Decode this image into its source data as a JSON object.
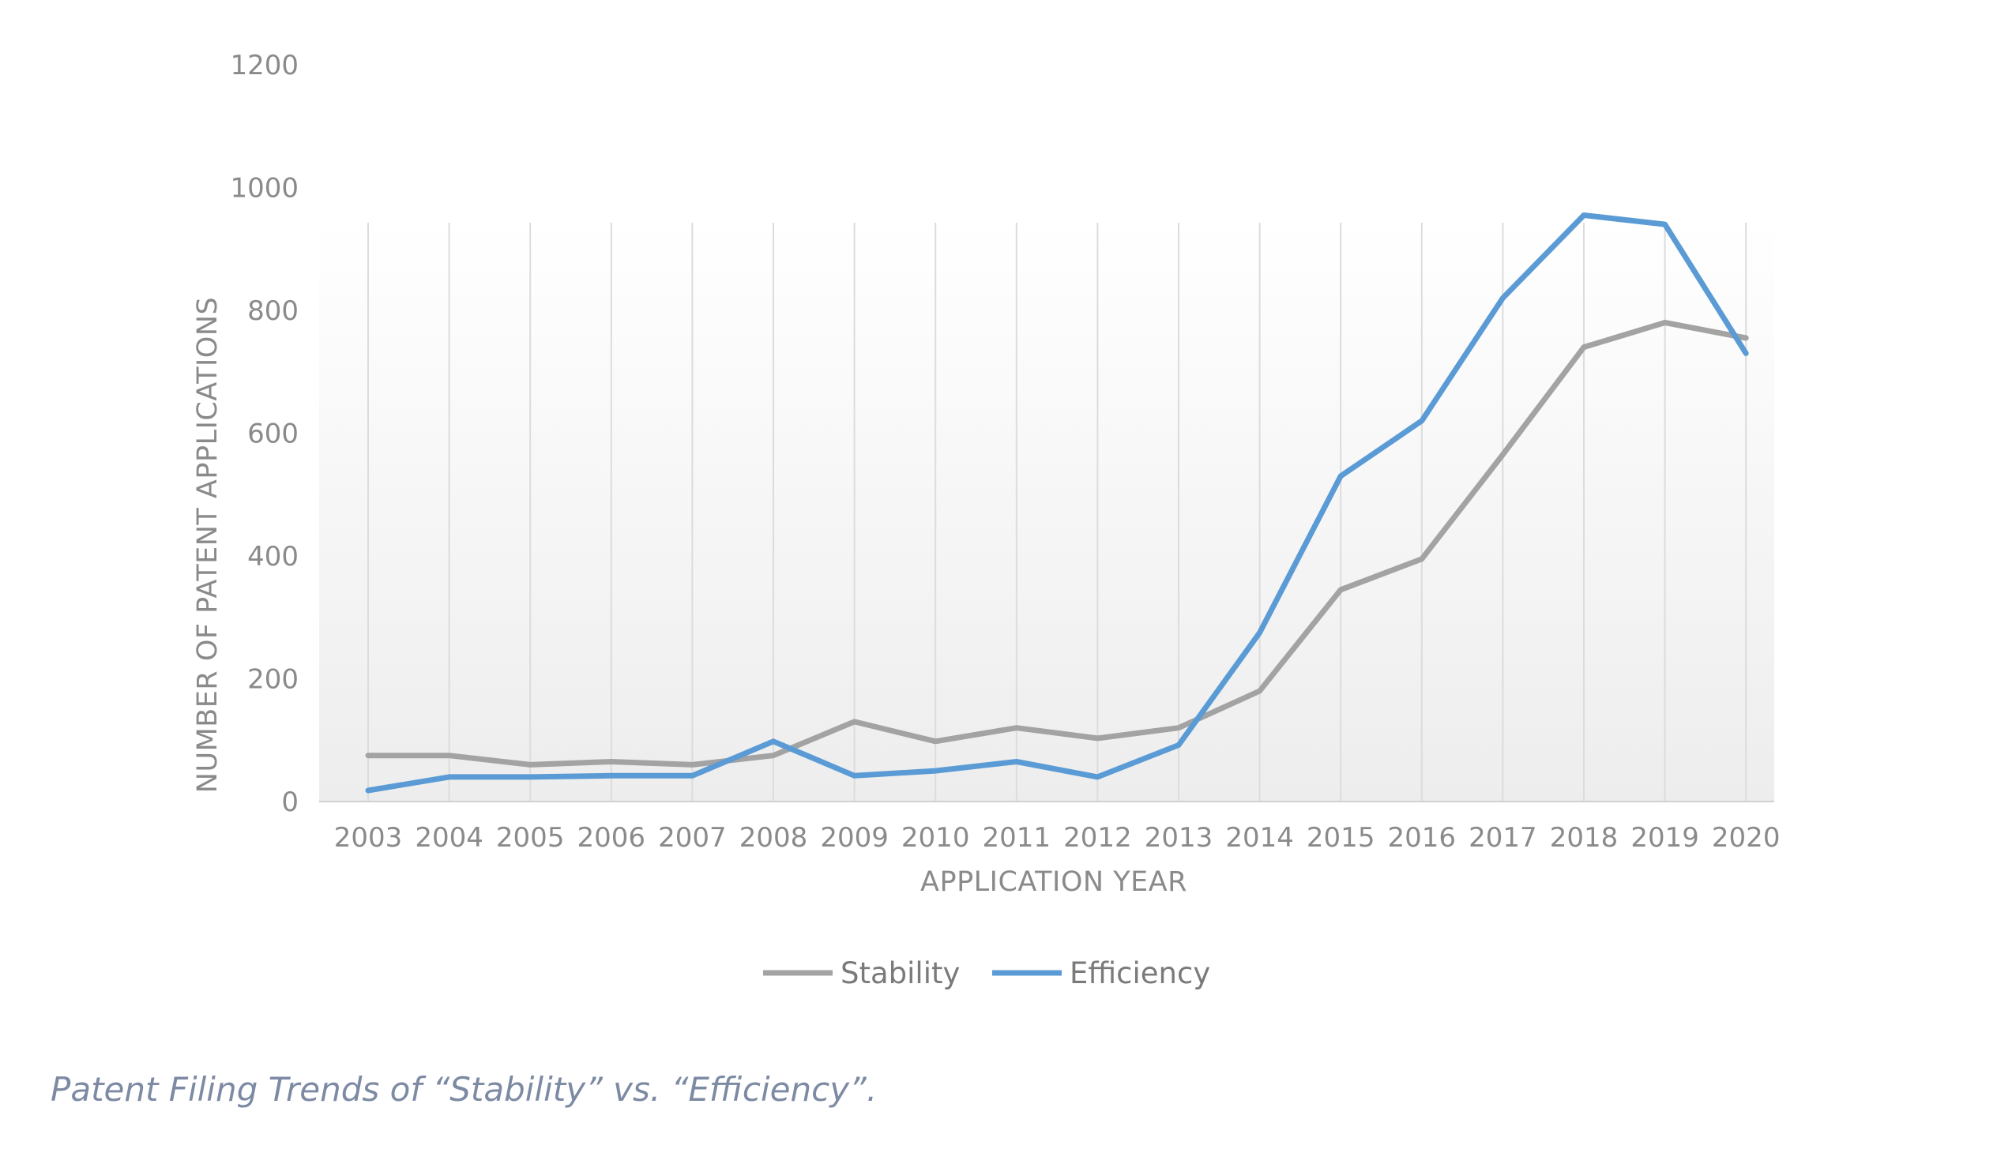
{
  "chart_data": {
    "type": "line",
    "x": [
      "2003",
      "2004",
      "2005",
      "2006",
      "2007",
      "2008",
      "2009",
      "2010",
      "2011",
      "2012",
      "2013",
      "2014",
      "2015",
      "2016",
      "2017",
      "2018",
      "2019",
      "2020"
    ],
    "series": [
      {
        "name": "Stability",
        "color": "#a3a3a3",
        "values": [
          75,
          75,
          60,
          65,
          60,
          75,
          130,
          98,
          120,
          103,
          120,
          180,
          345,
          395,
          565,
          740,
          780,
          755
        ]
      },
      {
        "name": "Efficiency",
        "color": "#5b9bd5",
        "values": [
          18,
          40,
          40,
          42,
          42,
          98,
          42,
          50,
          65,
          40,
          92,
          275,
          530,
          620,
          820,
          955,
          940,
          730
        ]
      }
    ],
    "ylim": [
      0,
      1200
    ],
    "yticks": [
      "0",
      "200",
      "400",
      "600",
      "800",
      "1000",
      "1200"
    ],
    "xlabel": "APPLICATION YEAR",
    "ylabel": "NUMBER OF PATENT APPLICATIONS",
    "legend_position": "bottom",
    "grid": "vertical"
  },
  "caption": "Patent Filing Trends of “Stability” vs. “Efficiency”."
}
